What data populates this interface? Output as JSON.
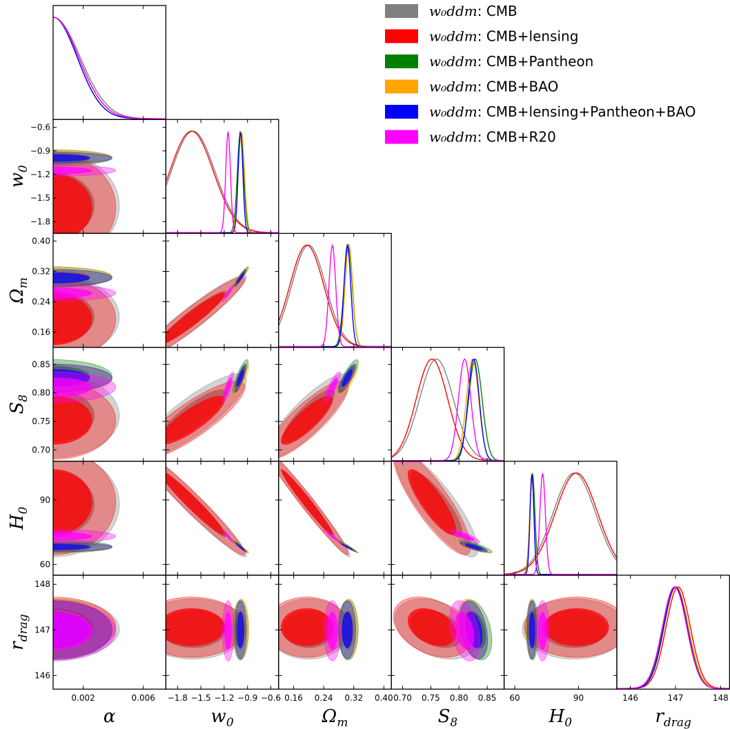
{
  "chart_data": {
    "type": "triangle-corner-plot",
    "grid": false,
    "legend_position": "top-right",
    "parameters": [
      {
        "name": "alpha",
        "label": "α",
        "sub": "",
        "range": [
          0,
          0.0075
        ],
        "ticks": [
          "0.002",
          "0.006"
        ],
        "tick_values": [
          0.002,
          0.006
        ]
      },
      {
        "name": "w0",
        "label": "w",
        "sub": "0",
        "range": [
          -1.95,
          -0.5
        ],
        "ticks": [
          "−1.8",
          "−1.5",
          "−1.2",
          "−0.9",
          "−0.6"
        ],
        "tick_values": [
          -1.8,
          -1.5,
          -1.2,
          -0.9,
          -0.6
        ]
      },
      {
        "name": "Omega_m",
        "label": "Ω",
        "sub": "m",
        "range": [
          0.12,
          0.42
        ],
        "ticks": [
          "0.16",
          "0.24",
          "0.32",
          "0.40"
        ],
        "tick_values": [
          0.16,
          0.24,
          0.32,
          0.4
        ]
      },
      {
        "name": "S8",
        "label": "S",
        "sub": "8",
        "range": [
          0.68,
          0.88
        ],
        "ticks": [
          "0.70",
          "0.75",
          "0.80",
          "0.85"
        ],
        "tick_values": [
          0.7,
          0.75,
          0.8,
          0.85
        ]
      },
      {
        "name": "H0",
        "label": "H",
        "sub": "0",
        "range": [
          55,
          108
        ],
        "ticks": [
          "60",
          "90"
        ],
        "tick_values": [
          60,
          90
        ]
      },
      {
        "name": "rdrag",
        "label": "r",
        "sub": "drag",
        "range": [
          145.7,
          148.2
        ],
        "ticks": [
          "146",
          "147",
          "148"
        ],
        "tick_values": [
          146,
          147,
          148
        ]
      }
    ],
    "series": [
      {
        "name_math": "w₀ddm",
        "name_text": ": CMB",
        "color": "#808080",
        "mean": {
          "alpha": 0.0,
          "w0": -1.6,
          "Omega_m": 0.2,
          "S8": 0.76,
          "H0": 88,
          "rdrag": 147.02
        },
        "sigma": {
          "alpha": 0.0018,
          "w0": 0.28,
          "Omega_m": 0.045,
          "S8": 0.03,
          "H0": 10,
          "rdrag": 0.27
        }
      },
      {
        "name_math": "w₀ddm",
        "name_text": ": CMB+lensing",
        "color": "#ff0000",
        "mean": {
          "alpha": 0.0,
          "w0": -1.62,
          "Omega_m": 0.195,
          "S8": 0.752,
          "H0": 89,
          "rdrag": 147.06
        },
        "sigma": {
          "alpha": 0.0017,
          "w0": 0.28,
          "Omega_m": 0.045,
          "S8": 0.028,
          "H0": 10,
          "rdrag": 0.27
        }
      },
      {
        "name_math": "w₀ddm",
        "name_text": ": CMB+Pantheon",
        "color": "#008000",
        "mean": {
          "alpha": 0.0,
          "w0": -0.99,
          "Omega_m": 0.305,
          "S8": 0.829,
          "H0": 68.3,
          "rdrag": 147.0
        },
        "sigma": {
          "alpha": 0.0016,
          "w0": 0.04,
          "Omega_m": 0.011,
          "S8": 0.012,
          "H0": 1.2,
          "rdrag": 0.27
        }
      },
      {
        "name_math": "w₀ddm",
        "name_text": ": CMB+BAO",
        "color": "#ffa500",
        "mean": {
          "alpha": 0.0,
          "w0": -0.98,
          "Omega_m": 0.307,
          "S8": 0.824,
          "H0": 68.0,
          "rdrag": 147.02
        },
        "sigma": {
          "alpha": 0.0016,
          "w0": 0.04,
          "Omega_m": 0.01,
          "S8": 0.011,
          "H0": 1.0,
          "rdrag": 0.27
        }
      },
      {
        "name_math": "w₀ddm",
        "name_text": ": CMB+lensing+Pantheon+BAO",
        "color": "#0000ff",
        "mean": {
          "alpha": 0.0,
          "w0": -0.99,
          "Omega_m": 0.303,
          "S8": 0.826,
          "H0": 68.1,
          "rdrag": 147.0
        },
        "sigma": {
          "alpha": 0.0016,
          "w0": 0.03,
          "Omega_m": 0.009,
          "S8": 0.01,
          "H0": 0.9,
          "rdrag": 0.26
        }
      },
      {
        "name_math": "w₀ddm",
        "name_text": ": CMB+R20",
        "color": "#ff00ff",
        "mean": {
          "alpha": 0.0,
          "w0": -1.15,
          "Omega_m": 0.263,
          "S8": 0.81,
          "H0": 73.1,
          "rdrag": 146.98
        },
        "sigma": {
          "alpha": 0.0017,
          "w0": 0.03,
          "Omega_m": 0.009,
          "S8": 0.011,
          "H0": 1.3,
          "rdrag": 0.27
        }
      }
    ]
  }
}
